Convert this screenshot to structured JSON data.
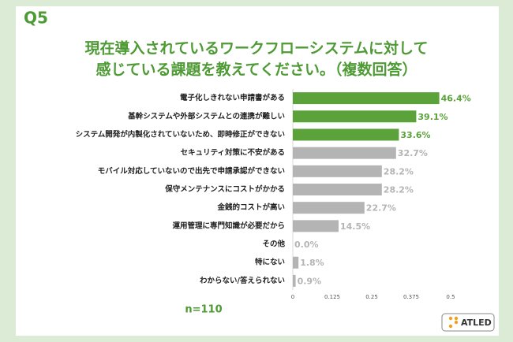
{
  "question": "Q5",
  "logo": "ATLED",
  "chart_data": {
    "type": "barh",
    "title": [
      "現在導入されているワークフローシステムに対して",
      "感じている課題を教えてください。（複数回答）"
    ],
    "categories": [
      "電子化しきれない申請書がある",
      "基幹システムや外部システムとの連携が難しい",
      "システム開発が内製化されていないため、即時修正ができない",
      "セキュリティ対策に不安がある",
      "モバイル対応していないので出先で申請承認ができない",
      "保守メンテナンスにコストがかかる",
      "金銭的コストが高い",
      "運用管理に専門知識が必要だから",
      "その他",
      "特にない",
      "わからない/答えられない"
    ],
    "values": [
      0.464,
      0.391,
      0.336,
      0.327,
      0.282,
      0.282,
      0.227,
      0.145,
      0.0,
      0.018,
      0.009
    ],
    "value_labels": [
      "46.4%",
      "39.1%",
      "33.6%",
      "32.7%",
      "28.2%",
      "28.2%",
      "22.7%",
      "14.5%",
      "0.0%",
      "1.8%",
      "0.9%"
    ],
    "colors": [
      "#5ba23a",
      "#5ba23a",
      "#5ba23a",
      "#b4b4b4",
      "#b4b4b4",
      "#b4b4b4",
      "#b4b4b4",
      "#b4b4b4",
      "#b4b4b4",
      "#b4b4b4",
      "#b4b4b4"
    ],
    "xlim": [
      0,
      0.5
    ],
    "xticks": [
      0,
      0.125,
      0.25,
      0.375,
      0.5
    ],
    "grid": false,
    "annotation": "n=110"
  }
}
